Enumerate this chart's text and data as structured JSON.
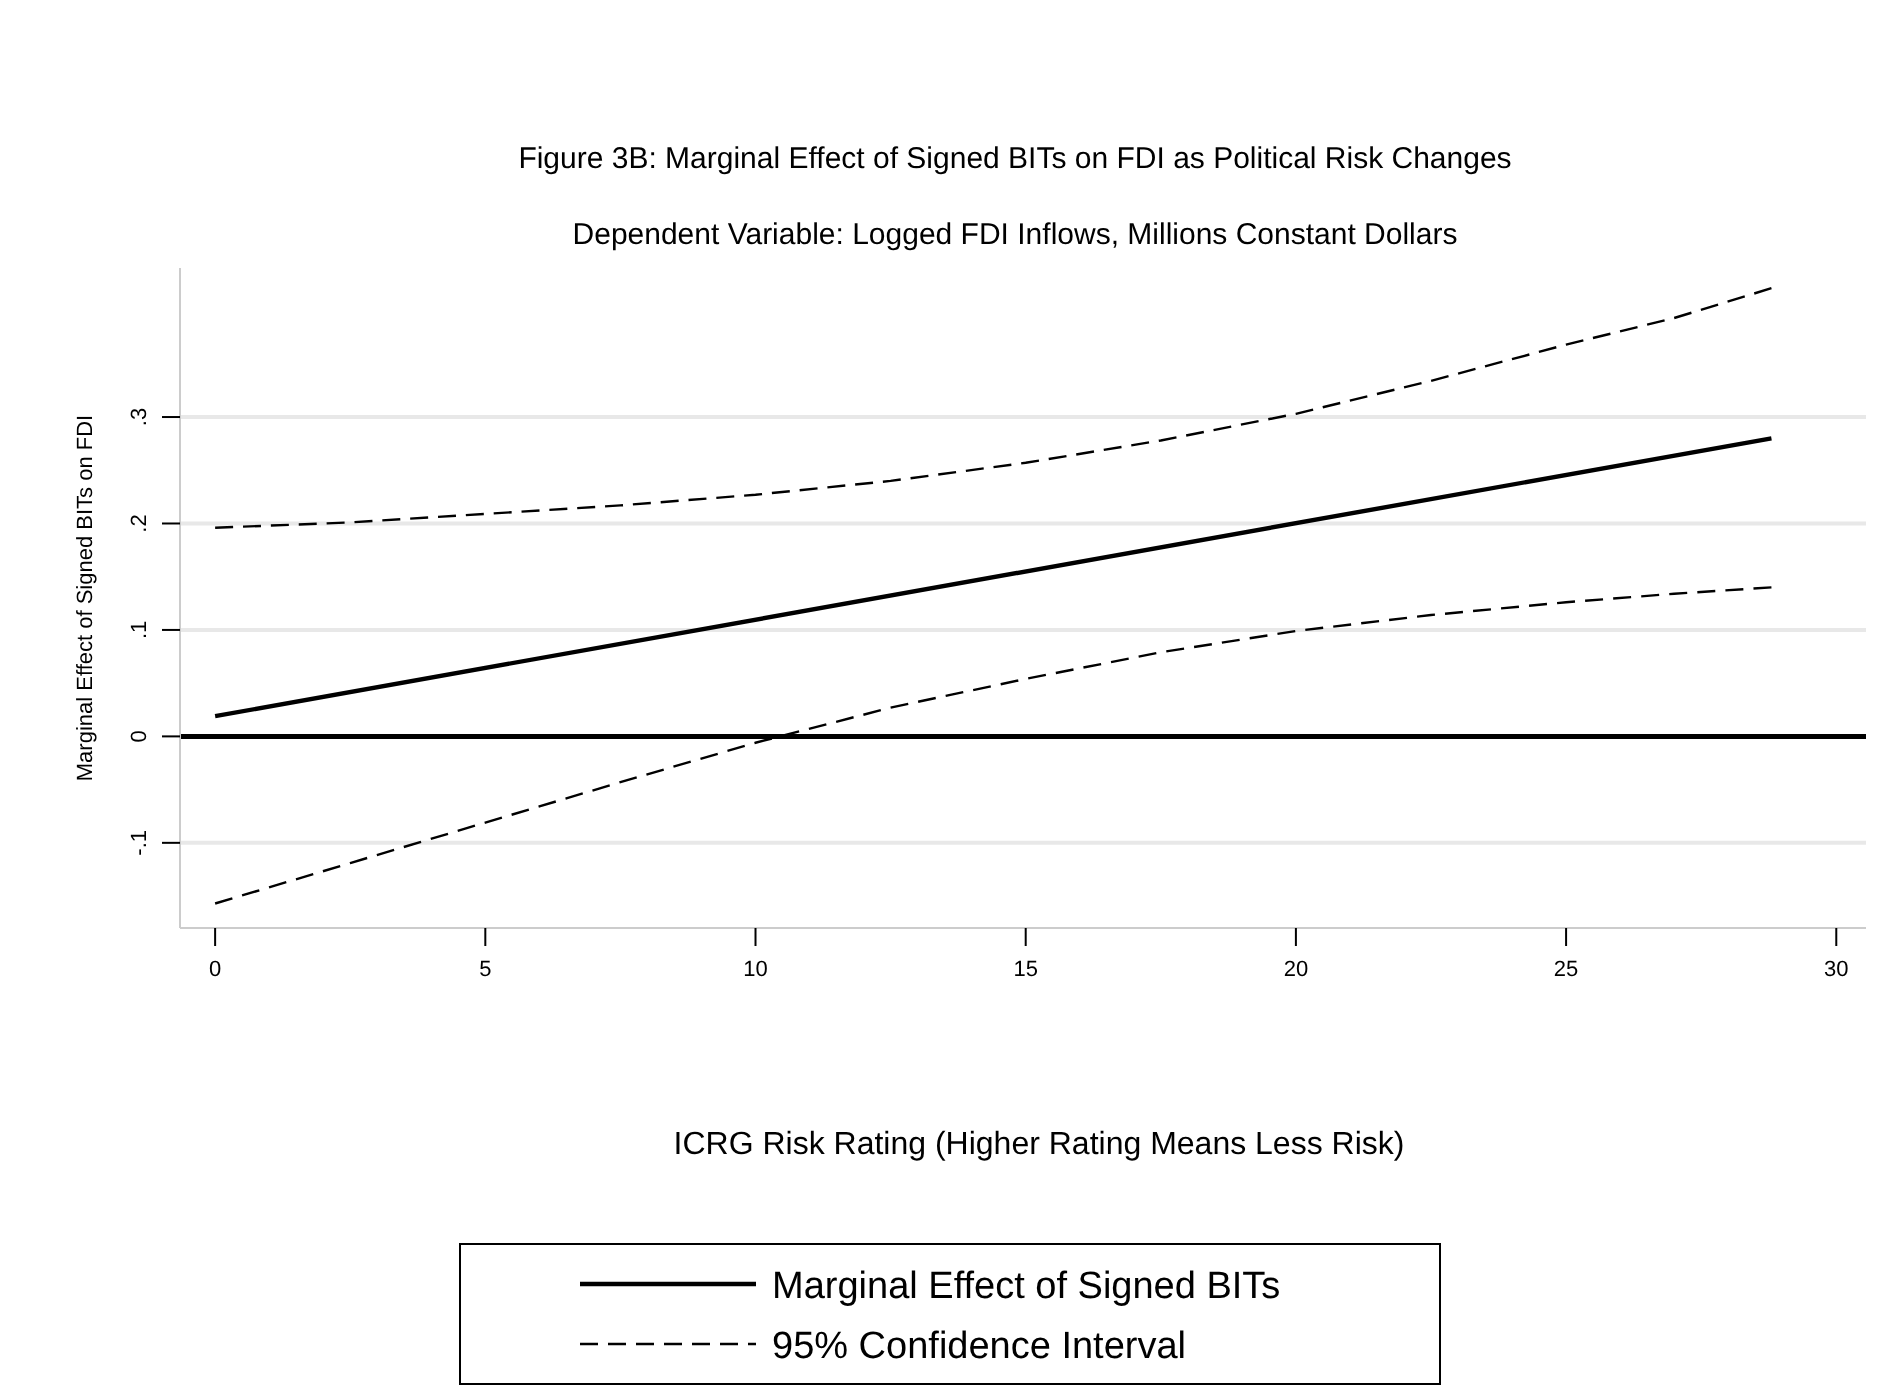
{
  "chart_data": {
    "type": "line",
    "title": "Figure 3B: Marginal Effect of Signed BITs on FDI as Political Risk Changes",
    "subtitle": "Dependent Variable: Logged FDI Inflows, Millions Constant Dollars",
    "xlabel": "ICRG Risk Rating (Higher Rating Means Less Risk)",
    "ylabel": "Marginal Effect of Signed BITs on FDI",
    "xlim": [
      -0.65,
      30.55
    ],
    "xticks": [
      0,
      5,
      10,
      15,
      20,
      25,
      30
    ],
    "ylim": [
      -0.18,
      0.44
    ],
    "yticks": [
      {
        "value": -0.1,
        "label": "-.1"
      },
      0,
      {
        "value": 0.1,
        "label": ".1"
      },
      {
        "value": 0.2,
        "label": ".2"
      },
      {
        "value": 0.3,
        "label": ".3"
      }
    ],
    "grid": "y",
    "legend": "bottom",
    "marker": "none",
    "ref_lines": [
      {
        "axis": "y",
        "value": 0,
        "color": "#000000"
      }
    ],
    "series": [
      {
        "name": "Marginal Effect of Signed BITs",
        "color": "#000000",
        "line_style": "solid",
        "x": [
          0,
          28.8
        ],
        "values": [
          0.019,
          0.28
        ]
      },
      {
        "name": "95% Confidence Interval",
        "color": "#000000",
        "line_style": "dashed",
        "x": [
          0,
          2.5,
          5,
          7.5,
          10,
          12.5,
          15,
          17.5,
          20,
          22.5,
          25,
          27,
          28.8
        ],
        "values": [
          0.196,
          0.201,
          0.209,
          0.217,
          0.227,
          0.24,
          0.257,
          0.278,
          0.303,
          0.334,
          0.368,
          0.393,
          0.421
        ]
      },
      {
        "color": "#000000",
        "line_style": "dashed",
        "x": [
          0,
          2.5,
          5,
          7.5,
          10,
          12.5,
          15,
          17.5,
          20,
          22.5,
          25,
          27,
          28.8
        ],
        "values": [
          -0.157,
          -0.119,
          -0.081,
          -0.043,
          -0.006,
          0.027,
          0.054,
          0.079,
          0.099,
          0.114,
          0.126,
          0.134,
          0.14
        ]
      }
    ]
  }
}
